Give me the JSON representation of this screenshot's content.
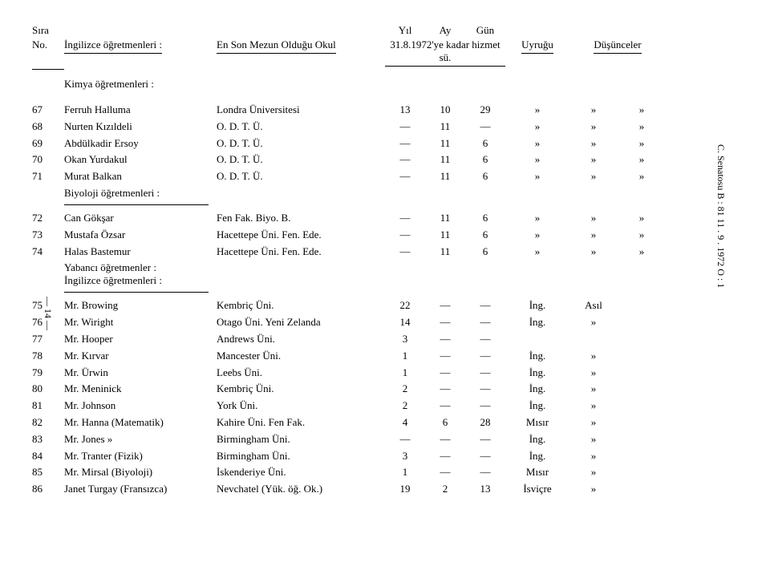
{
  "headers": {
    "sira": "Sıra",
    "no": "No.",
    "name_label": "İngilizce öğretmenleri :",
    "school_label": "En Son Mezun Olduğu Okul",
    "yil": "Yıl",
    "ay": "Ay",
    "gun": "Gün",
    "date_label": "31.8.1972'ye kadar hizmet sü.",
    "uyrugu": "Uyruğu",
    "dusunceler": "Düşünceler"
  },
  "sections": {
    "kimya": "Kimya öğretmenleri :",
    "biyoloji": "Biyoloji öğretmenleri :",
    "yabanci": "Yabancı öğretmenler :",
    "ingilizce": "İngilizce öğretmenleri :"
  },
  "rows1": [
    {
      "no": "67",
      "name": "Ferruh Halluma",
      "school": "Londra Üniversitesi",
      "yil": "13",
      "ay": "10",
      "gun": "29",
      "u": "»",
      "d1": "»",
      "d2": "»"
    },
    {
      "no": "68",
      "name": "Nurten Kızıldeli",
      "school": "O. D. T. Ü.",
      "yil": "—",
      "ay": "11",
      "gun": "—",
      "u": "»",
      "d1": "»",
      "d2": "»"
    },
    {
      "no": "69",
      "name": "Abdülkadir Ersoy",
      "school": "O. D. T. Ü.",
      "yil": "—",
      "ay": "11",
      "gun": "6",
      "u": "»",
      "d1": "»",
      "d2": "»"
    },
    {
      "no": "70",
      "name": "Okan Yurdakul",
      "school": "O. D. T. Ü.",
      "yil": "—",
      "ay": "11",
      "gun": "6",
      "u": "»",
      "d1": "»",
      "d2": "»"
    },
    {
      "no": "71",
      "name": "Murat Balkan",
      "school": "O. D. T. Ü.",
      "yil": "—",
      "ay": "11",
      "gun": "6",
      "u": "»",
      "d1": "»",
      "d2": "»"
    }
  ],
  "rows2": [
    {
      "no": "72",
      "name": "Can Gökşar",
      "school": "Fen Fak. Biyo. B.",
      "yil": "—",
      "ay": "11",
      "gun": "6",
      "u": "»",
      "d1": "»",
      "d2": "»"
    },
    {
      "no": "73",
      "name": "Mustafa Özsar",
      "school": "Hacettepe Üni. Fen. Ede.",
      "yil": "—",
      "ay": "11",
      "gun": "6",
      "u": "»",
      "d1": "»",
      "d2": "»"
    },
    {
      "no": "74",
      "name": "Halas Bastemur",
      "school": "Hacettepe Üni. Fen. Ede.",
      "yil": "—",
      "ay": "11",
      "gun": "6",
      "u": "»",
      "d1": "»",
      "d2": "»"
    }
  ],
  "rows3": [
    {
      "no": "75",
      "name": "Mr. Browing",
      "school": "Kembriç Üni.",
      "yil": "22",
      "ay": "—",
      "gun": "—",
      "u": "İng.",
      "d1": "Asıl",
      "d2": ""
    },
    {
      "no": "76",
      "name": "Mr. Wiright",
      "school": "Otago Üni. Yeni Zelanda",
      "yil": "14",
      "ay": "—",
      "gun": "—",
      "u": "İng.",
      "d1": "»",
      "d2": ""
    },
    {
      "no": "77",
      "name": "Mr. Hooper",
      "school": "Andrews Üni.",
      "yil": "3",
      "ay": "—",
      "gun": "—",
      "u": "",
      "d1": "",
      "d2": ""
    },
    {
      "no": "78",
      "name": "Mr. Kırvar",
      "school": "Mancester Üni.",
      "yil": "1",
      "ay": "—",
      "gun": "—",
      "u": "İng.",
      "d1": "»",
      "d2": ""
    },
    {
      "no": "79",
      "name": "Mr. Ürwin",
      "school": "Leebs Üni.",
      "yil": "1",
      "ay": "—",
      "gun": "—",
      "u": "İng.",
      "d1": "»",
      "d2": ""
    },
    {
      "no": "80",
      "name": "Mr. Meninick",
      "school": "Kembriç Üni.",
      "yil": "2",
      "ay": "—",
      "gun": "—",
      "u": "İng.",
      "d1": "»",
      "d2": ""
    },
    {
      "no": "81",
      "name": "Mr. Johnson",
      "school": "York Üni.",
      "yil": "2",
      "ay": "—",
      "gun": "—",
      "u": "İng.",
      "d1": "»",
      "d2": ""
    },
    {
      "no": "82",
      "name": "Mr. Hanna (Matematik)",
      "school": "Kahire Üni. Fen Fak.",
      "yil": "4",
      "ay": "6",
      "gun": "28",
      "u": "Mısır",
      "d1": "»",
      "d2": ""
    },
    {
      "no": "83",
      "name": "Mr. Jones     »",
      "school": "Birmingham Üni.",
      "yil": "—",
      "ay": "—",
      "gun": "—",
      "u": "İng.",
      "d1": "»",
      "d2": ""
    },
    {
      "no": "84",
      "name": "Mr. Tranter (Fizik)",
      "school": "Birmingham Üni.",
      "yil": "3",
      "ay": "—",
      "gun": "—",
      "u": "İng.",
      "d1": "»",
      "d2": ""
    },
    {
      "no": "85",
      "name": "Mr. Mirsal (Biyoloji)",
      "school": "İskenderiye Üni.",
      "yil": "1",
      "ay": "—",
      "gun": "—",
      "u": "Mısır",
      "d1": "»",
      "d2": ""
    },
    {
      "no": "86",
      "name": "Janet Turgay (Fransızca)",
      "school": "Nevchatel (Yük. öğ. Ok.)",
      "yil": "19",
      "ay": "2",
      "gun": "13",
      "u": "İsviçre",
      "d1": "»",
      "d2": ""
    }
  ],
  "margins": {
    "left": "— 14 —",
    "right": "C. Senatosu    B : 81    11 . 9 . 1972    O : 1"
  }
}
